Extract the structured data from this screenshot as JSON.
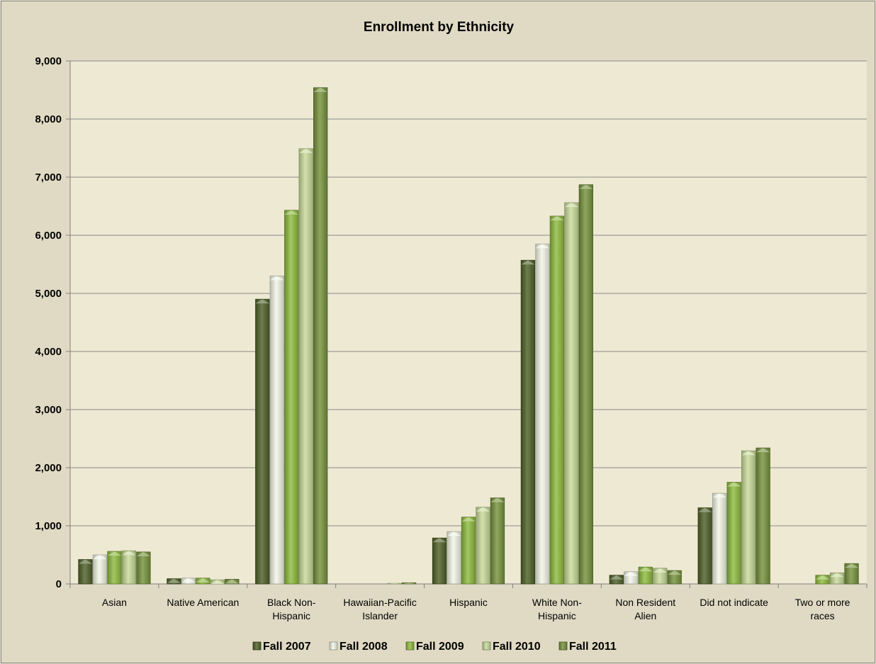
{
  "chart_data": {
    "type": "bar",
    "title": "Enrollment by Ethnicity",
    "xlabel": "",
    "ylabel": "",
    "ylim": [
      0,
      9000
    ],
    "ytick_step": 1000,
    "ytick_labels": [
      "0",
      "1,000",
      "2,000",
      "3,000",
      "4,000",
      "5,000",
      "6,000",
      "7,000",
      "8,000",
      "9,000"
    ],
    "grid": true,
    "legend_position": "bottom",
    "categories": [
      [
        "Asian"
      ],
      [
        "Native American"
      ],
      [
        "Black Non-",
        "Hispanic"
      ],
      [
        "Hawaiian-Pacific",
        "Islander"
      ],
      [
        "Hispanic"
      ],
      [
        "White Non-",
        "Hispanic"
      ],
      [
        "Non Resident",
        "Alien"
      ],
      [
        "Did not indicate"
      ],
      [
        "Two or more",
        "races"
      ]
    ],
    "series": [
      {
        "name": "Fall 2007",
        "color": "#4f6128",
        "values": [
          420,
          90,
          4900,
          0,
          790,
          5570,
          150,
          1310,
          0
        ]
      },
      {
        "name": "Fall 2008",
        "color": "#f3f6e6",
        "values": [
          500,
          100,
          5300,
          0,
          900,
          5850,
          210,
          1560,
          0
        ]
      },
      {
        "name": "Fall 2009",
        "color": "#8fbc3f",
        "values": [
          560,
          100,
          6430,
          0,
          1150,
          6330,
          290,
          1750,
          150
        ]
      },
      {
        "name": "Fall 2010",
        "color": "#c9dc9a",
        "values": [
          570,
          70,
          7490,
          10,
          1320,
          6560,
          270,
          2290,
          190
        ]
      },
      {
        "name": "Fall 2011",
        "color": "#77933c",
        "values": [
          550,
          80,
          8540,
          20,
          1480,
          6870,
          230,
          2340,
          350
        ]
      }
    ]
  }
}
